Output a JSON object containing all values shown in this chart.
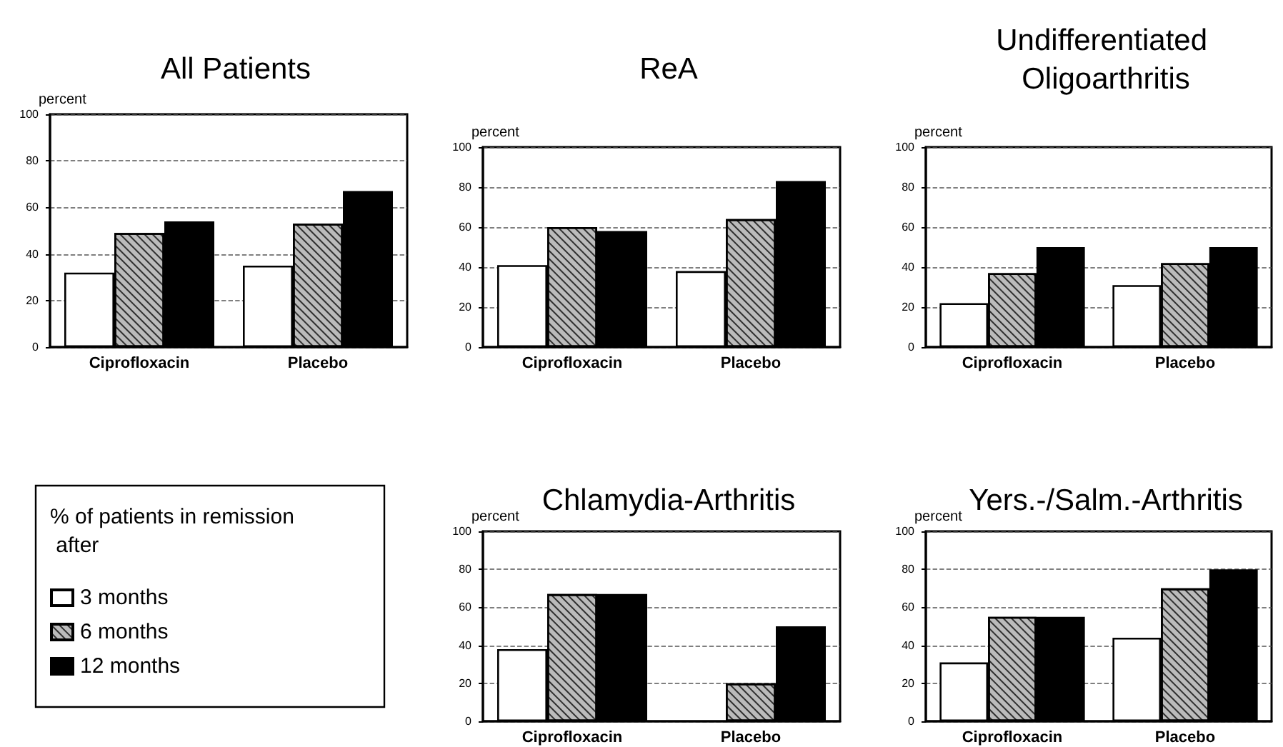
{
  "chart_data": [
    {
      "type": "bar",
      "title": "All Patients",
      "ylabel": "percent",
      "categories": [
        "Ciprofloxacin",
        "Placebo"
      ],
      "series": [
        {
          "name": "3 months",
          "color": "#ffffff",
          "values": [
            32,
            35
          ]
        },
        {
          "name": "6 months",
          "color": "#bbbbbb",
          "values": [
            49,
            53
          ]
        },
        {
          "name": "12 months",
          "color": "#000000",
          "values": [
            54,
            67
          ]
        }
      ],
      "ylim": [
        0,
        100
      ],
      "yticks": [
        0,
        20,
        40,
        60,
        80,
        100
      ],
      "grid": "y",
      "line_style": "dashed",
      "legend": "bottom",
      "legend_title": "% of patients in remission after"
    },
    {
      "type": "bar",
      "title": "ReA",
      "ylabel": "percent",
      "categories": [
        "Ciprofloxacin",
        "Placebo"
      ],
      "series": [
        {
          "color": "#ffffff",
          "values": [
            41,
            38
          ]
        },
        {
          "color": "#bbbbbb",
          "values": [
            60,
            64
          ]
        },
        {
          "color": "#000000",
          "values": [
            58,
            83
          ]
        }
      ],
      "ylim": [
        0,
        100
      ],
      "yticks": [
        0,
        20,
        40,
        60,
        80,
        100
      ],
      "grid": "y",
      "line_style": "dashed"
    },
    {
      "type": "bar",
      "title": "Undifferentiated Oligoarthritis",
      "ylabel": "percent",
      "categories": [
        "Ciprofloxacin",
        "Placebo"
      ],
      "series": [
        {
          "color": "#ffffff",
          "values": [
            22,
            31
          ]
        },
        {
          "color": "#bbbbbb",
          "values": [
            37,
            42
          ]
        },
        {
          "color": "#000000",
          "values": [
            50,
            50
          ]
        }
      ],
      "ylim": [
        0,
        100
      ],
      "yticks": [
        0,
        20,
        40,
        60,
        80,
        100
      ],
      "grid": "y",
      "line_style": "dashed"
    },
    {
      "type": "bar",
      "title": "Chlamydia-Arthritis",
      "ylabel": "percent",
      "categories": [
        "Ciprofloxacin",
        "Placebo"
      ],
      "series": [
        {
          "color": "#ffffff",
          "values": [
            38,
            null
          ]
        },
        {
          "color": "#bbbbbb",
          "values": [
            67,
            20
          ]
        },
        {
          "color": "#000000",
          "values": [
            67,
            50
          ]
        }
      ],
      "ylim": [
        0,
        100
      ],
      "yticks": [
        0,
        20,
        40,
        60,
        80,
        100
      ],
      "grid": "y",
      "line_style": "dashed"
    },
    {
      "type": "bar",
      "title": "Yers.-/Salm.-Arthritis",
      "ylabel": "percent",
      "categories": [
        "Ciprofloxacin",
        "Placebo"
      ],
      "series": [
        {
          "color": "#ffffff",
          "values": [
            31,
            44
          ]
        },
        {
          "color": "#bbbbbb",
          "values": [
            55,
            70
          ]
        },
        {
          "color": "#000000",
          "values": [
            55,
            80
          ]
        }
      ],
      "ylim": [
        0,
        100
      ],
      "yticks": [
        0,
        20,
        40,
        60,
        80,
        100
      ],
      "grid": "y",
      "line_style": "dashed"
    }
  ]
}
